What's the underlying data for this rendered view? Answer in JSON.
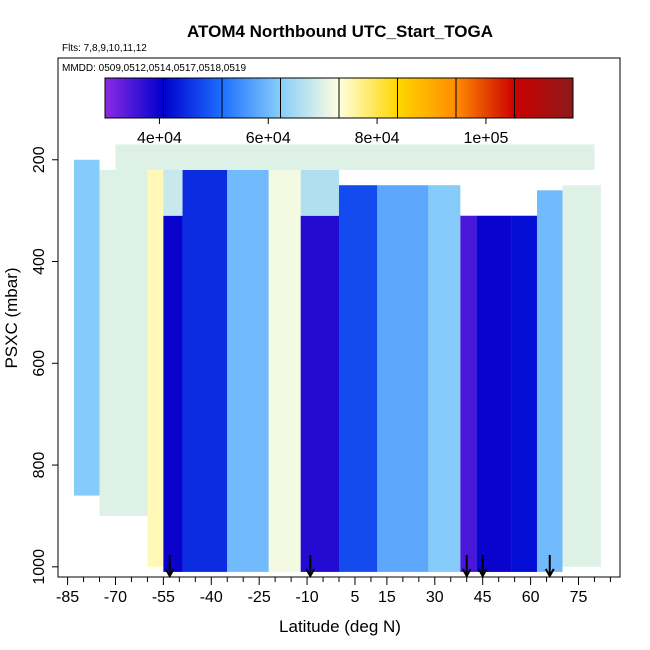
{
  "chart_data": {
    "type": "heatmap",
    "title": "ATOM4 Northbound UTC_Start_TOGA",
    "flights_label": "Flts: 7,8,9,10,11,12",
    "dates_label": "MMDD: 0509,0512,0514,0517,0518,0519",
    "xlabel": "Latitude (deg N)",
    "ylabel": "PSXC (mbar)",
    "xlim": [
      -88,
      88
    ],
    "ylim": [
      1020,
      0
    ],
    "x_ticks": [
      -85,
      -70,
      -55,
      -40,
      -25,
      -10,
      5,
      15,
      30,
      45,
      60,
      75
    ],
    "x_tick_labels": [
      "-85",
      "-70",
      "-55",
      "-40",
      "-25",
      "-10",
      "5",
      "15",
      "30",
      "45",
      "60",
      "75"
    ],
    "y_ticks": [
      200,
      400,
      600,
      800,
      1000
    ],
    "y_tick_labels": [
      "200",
      "400",
      "600",
      "800",
      "1000"
    ],
    "colorbar": {
      "min": 30000,
      "max": 116000,
      "ticks": [
        40000,
        60000,
        80000,
        100000
      ],
      "tick_labels": [
        "4e+04",
        "6e+04",
        "8e+04",
        "1e+05"
      ],
      "colors": [
        "#8a2be2",
        "#0000cd",
        "#1e6fff",
        "#87cefa",
        "#ffffe0",
        "#ffd700",
        "#ff8c00",
        "#cc0000",
        "#8b1a1a"
      ]
    },
    "cells": [
      {
        "lat": [
          -83,
          -75
        ],
        "p": [
          200,
          860
        ],
        "value": 62000
      },
      {
        "lat": [
          -75,
          -60
        ],
        "p": [
          220,
          900
        ],
        "value": 70000
      },
      {
        "lat": [
          -60,
          -55
        ],
        "p": [
          220,
          1000
        ],
        "value": 75000
      },
      {
        "lat": [
          -55,
          -49
        ],
        "p": [
          310,
          1010
        ],
        "value": 40000
      },
      {
        "lat": [
          -55,
          -49
        ],
        "p": [
          220,
          310
        ],
        "value": 68000
      },
      {
        "lat": [
          -49,
          -35
        ],
        "p": [
          220,
          1010
        ],
        "value": 45000
      },
      {
        "lat": [
          -35,
          -22
        ],
        "p": [
          220,
          1010
        ],
        "value": 60000
      },
      {
        "lat": [
          -22,
          -12
        ],
        "p": [
          220,
          1010
        ],
        "value": 72000
      },
      {
        "lat": [
          -12,
          0
        ],
        "p": [
          310,
          1010
        ],
        "value": 38000
      },
      {
        "lat": [
          -12,
          0
        ],
        "p": [
          220,
          310
        ],
        "value": 66000
      },
      {
        "lat": [
          0,
          12
        ],
        "p": [
          250,
          1010
        ],
        "value": 48000
      },
      {
        "lat": [
          12,
          28
        ],
        "p": [
          250,
          1010
        ],
        "value": 58000
      },
      {
        "lat": [
          28,
          38
        ],
        "p": [
          250,
          1010
        ],
        "value": 62000
      },
      {
        "lat": [
          38,
          43
        ],
        "p": [
          310,
          1010
        ],
        "value": 35000
      },
      {
        "lat": [
          43,
          54
        ],
        "p": [
          310,
          1010
        ],
        "value": 40000
      },
      {
        "lat": [
          54,
          62
        ],
        "p": [
          310,
          1010
        ],
        "value": 42000
      },
      {
        "lat": [
          62,
          70
        ],
        "p": [
          260,
          1010
        ],
        "value": 60000
      },
      {
        "lat": [
          70,
          82
        ],
        "p": [
          250,
          1000
        ],
        "value": 70000
      },
      {
        "lat": [
          -70,
          80
        ],
        "p": [
          170,
          220
        ],
        "value": 70000
      }
    ],
    "flight_markers_lat": [
      -53,
      -9,
      40,
      45,
      66
    ]
  }
}
